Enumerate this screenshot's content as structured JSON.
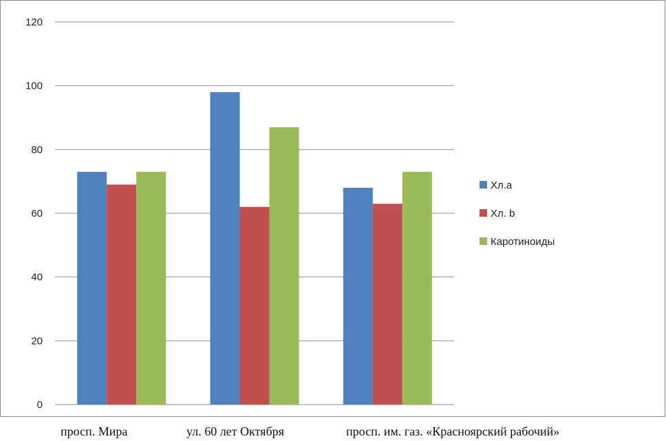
{
  "chart_data": {
    "type": "bar",
    "categories": [
      "просп. Мира",
      "ул. 60 лет Октября",
      "просп. им. газ. «Красноярский рабочий»"
    ],
    "series": [
      {
        "name": "Хл.a",
        "color": "#4F81BD",
        "values": [
          73,
          98,
          68
        ]
      },
      {
        "name": "Хл. b",
        "color": "#C0504D",
        "values": [
          69,
          62,
          63
        ]
      },
      {
        "name": "Каротиноиды",
        "color": "#9BBB59",
        "values": [
          73,
          87,
          73
        ]
      }
    ],
    "ylim": [
      0,
      120
    ],
    "yticks": [
      0,
      20,
      40,
      60,
      80,
      100,
      120
    ],
    "grid": true,
    "legend": "right"
  }
}
